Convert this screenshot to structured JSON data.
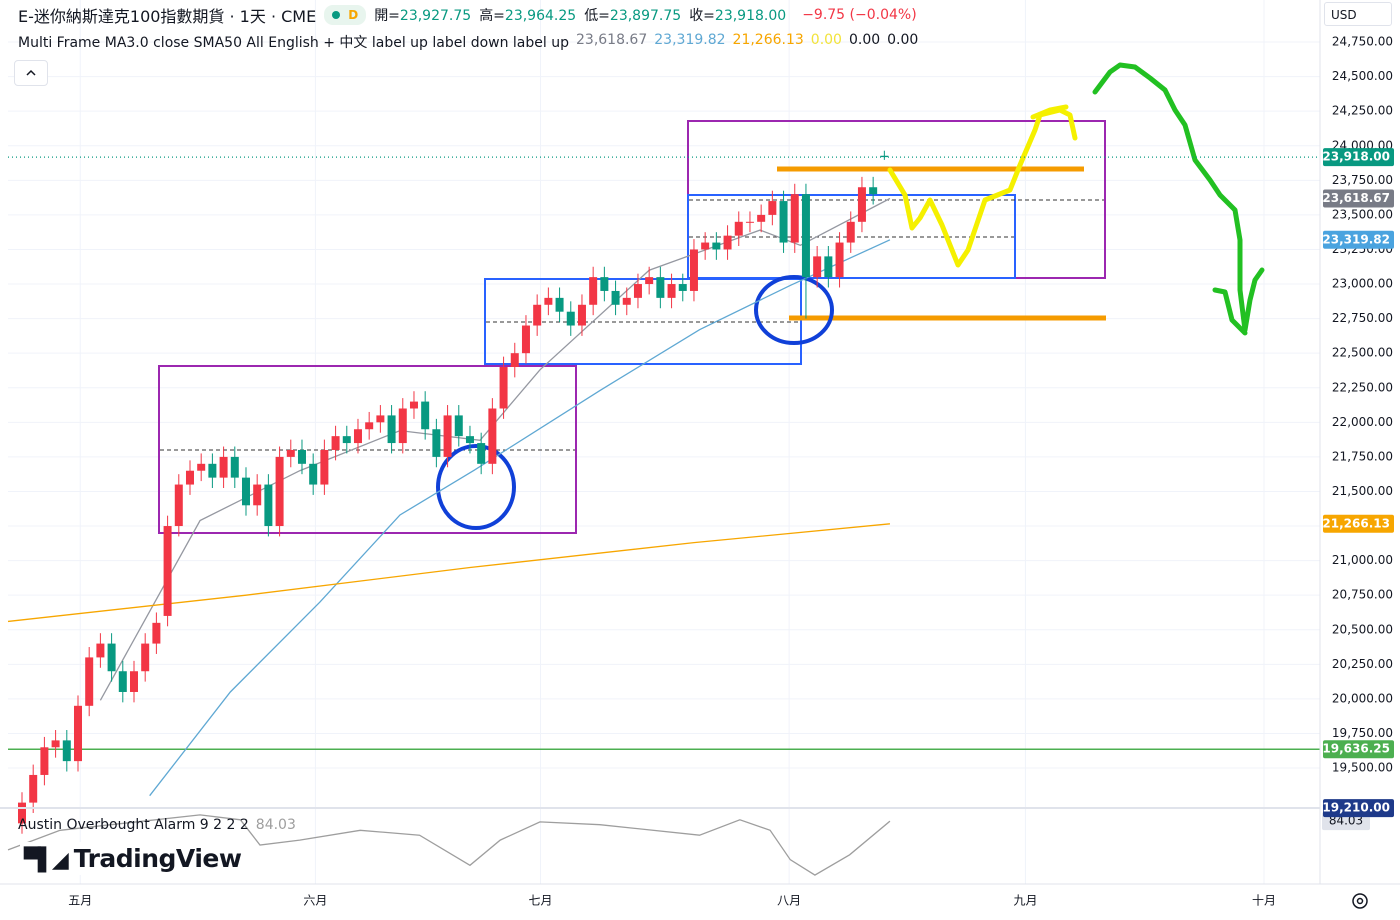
{
  "chart_data": {
    "type": "candlestick",
    "header": {
      "title": "E-迷你納斯達克100指數期貨 · 1天 · CME",
      "badge": "D",
      "ohlc": [
        {
          "label": "開=",
          "value": "23,927.75"
        },
        {
          "label": "高=",
          "value": "23,964.25"
        },
        {
          "label": "低=",
          "value": "23,897.75"
        },
        {
          "label": "收=",
          "value": "23,918.00"
        }
      ],
      "change": "−9.75 (−0.04%)"
    },
    "indicator": {
      "text": "Multi Frame MA3.0 close SMA50 All English + 中文 label up label down label up",
      "values": [
        {
          "text": "23,618.67",
          "color": "#787b86"
        },
        {
          "text": "23,319.82",
          "color": "#5fa8d3"
        },
        {
          "text": "21,266.13",
          "color": "#f7a600"
        },
        {
          "text": "0.00",
          "color": "#f2e33a"
        },
        {
          "text": "0.00",
          "color": "#131722"
        },
        {
          "text": "0.00",
          "color": "#131722"
        }
      ]
    },
    "currency": "USD",
    "logo": "TradingView",
    "up_color": "#f23645",
    "down_color": "#089981",
    "open": [
      19100,
      19250,
      19450,
      19650,
      19700,
      19550,
      19950,
      20300,
      20400,
      20200,
      20050,
      20200,
      20400,
      20600,
      21250,
      21550,
      21650,
      21700,
      21600,
      21750,
      21600,
      21400,
      21550,
      21250,
      21750,
      21800,
      21700,
      21550,
      21800,
      21900,
      21850,
      21950,
      22000,
      22050,
      21850,
      22100,
      22150,
      21950,
      21750,
      22050,
      21900,
      21850,
      21700,
      22100,
      22400,
      22500,
      22700,
      22850,
      22900,
      22800,
      22700,
      22850,
      23050,
      22950,
      22850,
      22900,
      23000,
      23050,
      22900,
      23000,
      22950,
      23250,
      23300,
      23250,
      23350,
      23450,
      23450,
      23500,
      23600,
      23300,
      23650,
      23050,
      23200,
      23050,
      23300,
      23450,
      23700,
      23927.75
    ],
    "high": [
      19325,
      19525,
      19725,
      19775,
      19775,
      20025,
      20375,
      20475,
      20475,
      20275,
      20275,
      20475,
      20625,
      21325,
      21625,
      21725,
      21775,
      21775,
      21825,
      21825,
      21675,
      21625,
      21625,
      21825,
      21875,
      21875,
      21775,
      21875,
      21975,
      21975,
      22025,
      22075,
      22125,
      22125,
      22175,
      22225,
      22225,
      22025,
      22125,
      22125,
      21975,
      21925,
      22175,
      22475,
      22575,
      22775,
      22925,
      22975,
      22975,
      22875,
      22925,
      23125,
      23125,
      23025,
      22975,
      23075,
      23125,
      23125,
      23075,
      23075,
      23325,
      23375,
      23375,
      23425,
      23525,
      23525,
      23575,
      23675,
      23675,
      23725,
      23725,
      23275,
      23275,
      23375,
      23525,
      23775,
      23775,
      23964.25
    ],
    "low": [
      19025,
      19175,
      19375,
      19575,
      19475,
      19475,
      19875,
      20225,
      20125,
      19975,
      19975,
      20125,
      20325,
      20525,
      21175,
      21475,
      21575,
      21525,
      21525,
      21525,
      21325,
      21325,
      21175,
      21175,
      21675,
      21625,
      21475,
      21475,
      21725,
      21775,
      21775,
      21875,
      21925,
      21775,
      21775,
      22025,
      21875,
      21675,
      21675,
      21825,
      21775,
      21625,
      21625,
      22025,
      22325,
      22425,
      22625,
      22775,
      22725,
      22625,
      22625,
      22775,
      22875,
      22775,
      22775,
      22825,
      22925,
      22825,
      22825,
      22875,
      22875,
      23175,
      23175,
      23175,
      23275,
      23375,
      23375,
      23425,
      23225,
      23225,
      22750,
      22975,
      22975,
      22975,
      23225,
      23375,
      23575,
      23897.75
    ],
    "close": [
      19250,
      19450,
      19650,
      19700,
      19550,
      19950,
      20300,
      20400,
      20200,
      20050,
      20200,
      20400,
      20550,
      21250,
      21550,
      21650,
      21700,
      21600,
      21750,
      21600,
      21400,
      21550,
      21250,
      21750,
      21800,
      21700,
      21550,
      21800,
      21900,
      21850,
      21950,
      22000,
      22050,
      21850,
      22100,
      22150,
      21950,
      21750,
      22050,
      21900,
      21850,
      21700,
      22100,
      22400,
      22500,
      22700,
      22850,
      22900,
      22800,
      22700,
      22850,
      23050,
      22950,
      22850,
      22900,
      23000,
      23050,
      22900,
      23000,
      22950,
      23250,
      23300,
      23250,
      23350,
      23450,
      23450,
      23500,
      23600,
      23300,
      23650,
      23050,
      23200,
      23050,
      23300,
      23450,
      23700,
      23650,
      23918
    ],
    "lines": [
      {
        "color": "#9598a1",
        "x": [
          7,
          15.9,
          24.8,
          33.75,
          40.9,
          46.25,
          56,
          65.9,
          69.5,
          77.5
        ],
        "values": [
          19990,
          21290,
          21650,
          21940,
          21870,
          22380,
          23100,
          23390,
          23280,
          23618.67
        ]
      },
      {
        "color": "#5fa8d3",
        "x": [
          11.4,
          18.6,
          26.6,
          33.75,
          40.4,
          51.6,
          60.5,
          68.6,
          77.5
        ],
        "values": [
          19300,
          20050,
          20700,
          21330,
          21655,
          22230,
          22670,
          22990,
          23319.82
        ]
      },
      {
        "color": "#f7a600",
        "x": [
          -1.25,
          20,
          40,
          60,
          77.5
        ],
        "values": [
          20560,
          20750,
          20950,
          21130,
          21266.13
        ]
      }
    ],
    "price_labels": [
      {
        "value": 23918,
        "label": "23,918.00",
        "color": "#089981",
        "line": "dotted"
      },
      {
        "value": 23618.67,
        "label": "23,618.67",
        "color": "#787b86"
      },
      {
        "value": 23319.82,
        "label": "23,319.82",
        "color": "#4aa3df"
      },
      {
        "value": 21266.13,
        "label": "21,266.13",
        "color": "#f7a600"
      },
      {
        "value": 19636.25,
        "label": "19,636.25",
        "color": "#4caf50",
        "line": "solid"
      },
      {
        "value": 19210,
        "label": "19,210.00",
        "color": "#1e3a8a"
      }
    ],
    "oscillator": {
      "name": "Austin Overbought Alarm 9 2 2 2",
      "x": [
        -1.25,
        3.4,
        15.9,
        19.5,
        21.25,
        24.8,
        30.2,
        35.5,
        40,
        42.7,
        46.25,
        51.6,
        60.5,
        64.1,
        66.8,
        68.6,
        70.8,
        73.9,
        77.5
      ],
      "values": [
        43,
        71,
        93,
        86,
        50,
        57,
        71,
        64,
        21,
        57,
        83,
        79,
        64,
        86,
        71,
        29,
        7,
        36,
        84.03
      ],
      "value_label": "84.03",
      "ylim": [
        0,
        100
      ],
      "color": "#9e9e9e"
    },
    "xlim": [
      -1.25,
      115.9
    ],
    "xticks": [
      {
        "value": 5.2,
        "label": "五月"
      },
      {
        "value": 26.2,
        "label": "六月"
      },
      {
        "value": 46.3,
        "label": "七月"
      },
      {
        "value": 68.5,
        "label": "八月"
      },
      {
        "value": 89.6,
        "label": "九月"
      },
      {
        "value": 110.9,
        "label": "十月"
      }
    ],
    "ylim": [
      19211,
      25054
    ],
    "yticks": [
      {
        "value": 19500,
        "label": "19,500.00"
      },
      {
        "value": 19750,
        "label": "19,750.00"
      },
      {
        "value": 20000,
        "label": "20,000.00"
      },
      {
        "value": 20250,
        "label": "20,250.00"
      },
      {
        "value": 20500,
        "label": "20,500.00"
      },
      {
        "value": 20750,
        "label": "20,750.00"
      },
      {
        "value": 21000,
        "label": "21,000.00"
      },
      {
        "value": 21250,
        "label": "21,250.00"
      },
      {
        "value": 21500,
        "label": "21,500.00"
      },
      {
        "value": 21750,
        "label": "21,750.00"
      },
      {
        "value": 22000,
        "label": "22,000.00"
      },
      {
        "value": 22250,
        "label": "22,250.00"
      },
      {
        "value": 22500,
        "label": "22,500.00"
      },
      {
        "value": 22750,
        "label": "22,750.00"
      },
      {
        "value": 23000,
        "label": "23,000.00"
      },
      {
        "value": 23250,
        "label": "23,250.00"
      },
      {
        "value": 23500,
        "label": "23,500.00"
      },
      {
        "value": 23750,
        "label": "23,750.00"
      },
      {
        "value": 24000,
        "label": "24,000.00"
      },
      {
        "value": 24250,
        "label": "24,250.00"
      },
      {
        "value": 24500,
        "label": "24,500.00"
      },
      {
        "value": 24750,
        "label": "24,750.00"
      }
    ],
    "grid": true
  }
}
